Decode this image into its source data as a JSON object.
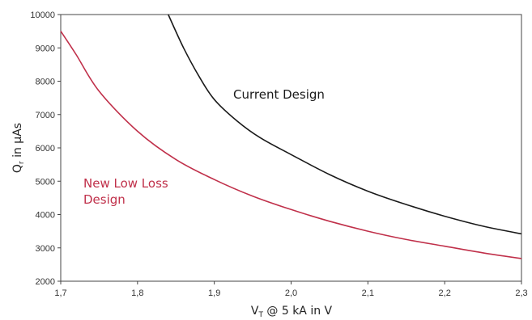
{
  "chart_data": {
    "type": "line",
    "xlabel": {
      "main": "V",
      "sub": "T",
      "rest": " @ 5 kA in V"
    },
    "ylabel": {
      "main": "Q",
      "sub": "r",
      "rest": " in µAs"
    },
    "xlim": [
      1.7,
      2.3
    ],
    "ylim": [
      2000,
      10000
    ],
    "x_ticks": [
      {
        "value": 1.7,
        "label": "1,7"
      },
      {
        "value": 1.8,
        "label": "1,8"
      },
      {
        "value": 1.9,
        "label": "1,9"
      },
      {
        "value": 2.0,
        "label": "2,0"
      },
      {
        "value": 2.1,
        "label": "2,1"
      },
      {
        "value": 2.2,
        "label": "2,2"
      },
      {
        "value": 2.3,
        "label": "2,3"
      }
    ],
    "y_ticks": [
      {
        "value": 2000,
        "label": "2000"
      },
      {
        "value": 3000,
        "label": "3000"
      },
      {
        "value": 4000,
        "label": "4000"
      },
      {
        "value": 5000,
        "label": "5000"
      },
      {
        "value": 6000,
        "label": "6000"
      },
      {
        "value": 7000,
        "label": "7000"
      },
      {
        "value": 8000,
        "label": "8000"
      },
      {
        "value": 9000,
        "label": "9000"
      },
      {
        "value": 10000,
        "label": "10000"
      }
    ],
    "grid": false,
    "series": [
      {
        "label_lines": [
          "Current Design"
        ],
        "color": "#1a1a1a",
        "x": [
          1.84,
          1.86,
          1.88,
          1.9,
          1.93,
          1.96,
          2.0,
          2.05,
          2.1,
          2.15,
          2.2,
          2.25,
          2.3
        ],
        "y": [
          10000,
          9000,
          8150,
          7450,
          6800,
          6300,
          5800,
          5200,
          4700,
          4300,
          3950,
          3650,
          3420
        ]
      },
      {
        "label_lines": [
          "New Low Loss",
          "Design"
        ],
        "color": "#c0304a",
        "x": [
          1.7,
          1.72,
          1.75,
          1.8,
          1.85,
          1.9,
          1.95,
          2.0,
          2.05,
          2.1,
          2.15,
          2.2,
          2.25,
          2.3
        ],
        "y": [
          9500,
          8800,
          7700,
          6500,
          5650,
          5050,
          4550,
          4150,
          3800,
          3500,
          3250,
          3050,
          2850,
          2680
        ]
      }
    ]
  }
}
